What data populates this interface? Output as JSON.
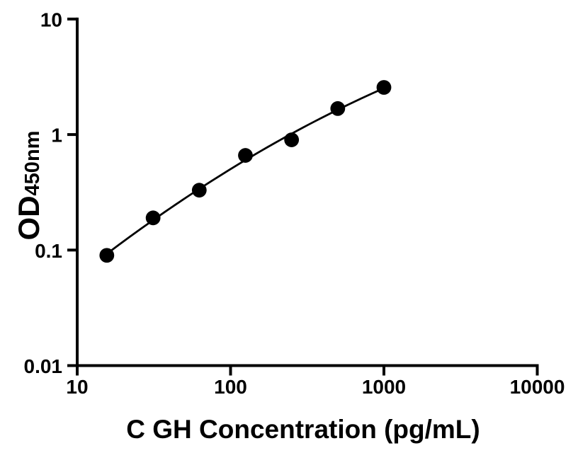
{
  "figure": {
    "background_color": "#ffffff",
    "ink_color": "#000000"
  },
  "chart_data": {
    "type": "scatter",
    "x_scale": "log",
    "y_scale": "log",
    "x": [
      15.6,
      31.25,
      62.5,
      125,
      250,
      500,
      1000
    ],
    "y": [
      0.09,
      0.19,
      0.33,
      0.66,
      0.9,
      1.68,
      2.56
    ],
    "trend_line": "smooth nonlinear fit through points",
    "xlabel": "C GH Concentration (pg/mL)",
    "ylabel_main": "OD",
    "ylabel_subscript": "450nm",
    "xlim": [
      10,
      10000
    ],
    "ylim": [
      0.01,
      10
    ],
    "x_ticks": [
      10,
      100,
      1000,
      10000
    ],
    "x_tick_labels": [
      "10",
      "100",
      "1000",
      "10000"
    ],
    "y_ticks": [
      10,
      1,
      0.1,
      0.01
    ],
    "y_tick_labels": [
      "10",
      "1",
      "0.1",
      "0.01"
    ],
    "grid": false,
    "legend": null,
    "marker": "filled-circle",
    "colors": {
      "points": "#000000",
      "line": "#000000",
      "axis": "#000000",
      "text": "#000000"
    }
  }
}
